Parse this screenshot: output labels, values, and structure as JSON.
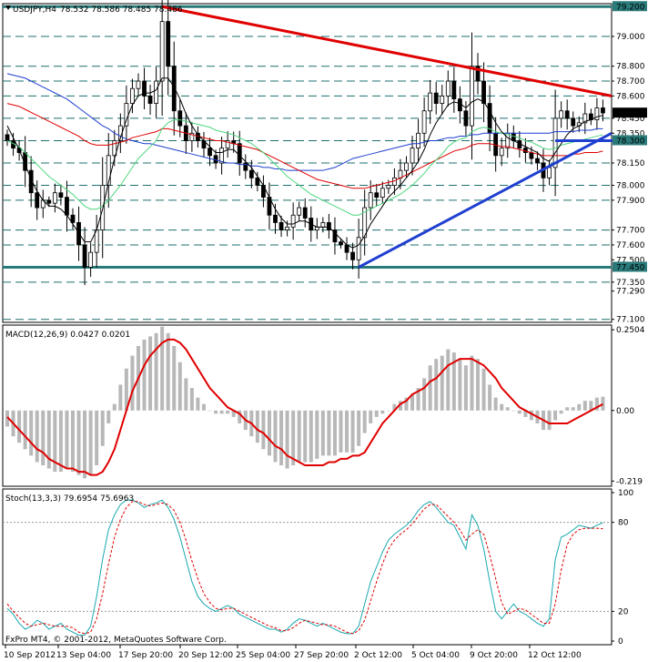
{
  "header": {
    "symbol_text": "USDJPY,H4",
    "ohlc_text": "78.532 78.586 78.485 78.486"
  },
  "footer_text": "FxPro MT4, © 2001-2012, MetaQuotes Software Corp.",
  "colors": {
    "background": "#ffffff",
    "grid_dash": "#1f6f6f",
    "support_resistance": "#2a7a7a",
    "trendline_red": "#e00000",
    "trendline_blue": "#1f3fd0",
    "candle": "#000000",
    "macd_hist": "#b8b8b8",
    "macd_signal": "#e00000",
    "stoch_main": "#18a8b0",
    "stoch_signal": "#e00000",
    "ma_blue": "#1f3fd0",
    "ma_red": "#e00000",
    "ma_green": "#4fd67f"
  },
  "chart_data": [
    {
      "type": "candlestick",
      "name": "main",
      "x_tick_labels": [
        "10 Sep 2012",
        "13 Sep 04:00",
        "17 Sep 20:00",
        "20 Sep 12:00",
        "25 Sep 04:00",
        "27 Sep 20:00",
        "2 Oct 12:00",
        "5 Oct 04:00",
        "9 Oct 20:00",
        "12 Oct 12:00"
      ],
      "y_tick_labels": [
        "79.200",
        "79.000",
        "78.800",
        "78.700",
        "78.600",
        "78.485",
        "78.450",
        "78.350",
        "78.300",
        "78.150",
        "78.000",
        "77.900",
        "77.700",
        "77.600",
        "77.500",
        "77.450",
        "77.350",
        "77.290",
        "77.100"
      ],
      "ylim": [
        77.08,
        79.22
      ],
      "levels": [
        79.2,
        79.0,
        78.8,
        78.7,
        78.6,
        78.45,
        78.3,
        78.15,
        78.0,
        77.9,
        77.7,
        77.6,
        77.45,
        77.35,
        77.1
      ],
      "major_levels": [
        79.2,
        77.45
      ],
      "last_price": 78.486,
      "closes": [
        78.3,
        78.25,
        78.22,
        78.1,
        77.95,
        77.85,
        77.9,
        77.88,
        77.95,
        77.92,
        77.8,
        77.75,
        77.6,
        77.45,
        77.55,
        77.7,
        78.0,
        78.2,
        78.3,
        78.4,
        78.55,
        78.65,
        78.7,
        78.6,
        78.55,
        78.7,
        79.1,
        78.8,
        78.5,
        78.4,
        78.3,
        78.35,
        78.3,
        78.25,
        78.2,
        78.15,
        78.25,
        78.3,
        78.28,
        78.15,
        78.1,
        78.05,
        78.0,
        77.92,
        77.8,
        77.75,
        77.7,
        77.72,
        77.8,
        77.85,
        77.78,
        77.7,
        77.72,
        77.75,
        77.7,
        77.62,
        77.6,
        77.55,
        77.5,
        77.65,
        77.85,
        77.95,
        77.92,
        77.98,
        78.0,
        78.05,
        78.1,
        78.15,
        78.25,
        78.35,
        78.5,
        78.62,
        78.55,
        78.6,
        78.7,
        78.58,
        78.5,
        78.4,
        78.8,
        78.7,
        78.55,
        78.35,
        78.2,
        78.25,
        78.35,
        78.3,
        78.25,
        78.22,
        78.18,
        78.15,
        78.05,
        78.12,
        78.45,
        78.5,
        78.45,
        78.4,
        78.42,
        78.48,
        78.44,
        78.52,
        78.486
      ],
      "annotations": {
        "red_trendline": {
          "from_index": 26,
          "from_price": 79.2,
          "to_price_at_right_edge": 78.6
        },
        "blue_trendline": {
          "from_index": 59,
          "from_price": 77.45,
          "to_price_at_right_edge": 78.35
        },
        "blue_horizontal": {
          "from_index": 92,
          "to_index": 100,
          "price": 78.3
        }
      },
      "moving_averages": [
        {
          "color": "blue",
          "values": [
            78.75,
            78.74,
            78.73,
            78.72,
            78.7,
            78.68,
            78.66,
            78.64,
            78.62,
            78.6,
            78.58,
            78.55,
            78.52,
            78.49,
            78.46,
            78.43,
            78.4,
            78.38,
            78.35,
            78.33,
            78.31,
            78.3,
            78.29,
            78.28,
            78.28,
            78.27,
            78.26,
            78.25,
            78.24,
            78.23,
            78.22,
            78.21,
            78.2,
            78.19,
            78.18,
            78.17,
            78.16,
            78.15,
            78.15,
            78.14,
            78.14,
            78.13,
            78.13,
            78.12,
            78.12,
            78.11,
            78.11,
            78.1,
            78.1,
            78.1,
            78.1,
            78.1,
            78.1,
            78.1,
            78.11,
            78.12,
            78.14,
            78.16,
            78.18,
            78.19,
            78.2,
            78.21,
            78.22,
            78.23,
            78.24,
            78.25,
            78.26,
            78.27,
            78.28,
            78.28,
            78.29,
            78.3,
            78.3,
            78.31,
            78.32,
            78.32,
            78.33,
            78.33,
            78.34,
            78.34,
            78.35,
            78.35,
            78.35,
            78.35,
            78.35,
            78.35,
            78.35,
            78.35,
            78.35,
            78.35,
            78.35,
            78.35,
            78.36,
            78.36,
            78.36,
            78.36,
            78.37,
            78.37,
            78.37,
            78.38,
            78.38
          ]
        },
        {
          "color": "red",
          "values": [
            78.55,
            78.54,
            78.53,
            78.51,
            78.49,
            78.47,
            78.45,
            78.43,
            78.41,
            78.39,
            78.37,
            78.35,
            78.33,
            78.3,
            78.28,
            78.27,
            78.27,
            78.27,
            78.28,
            78.29,
            78.3,
            78.32,
            78.33,
            78.34,
            78.35,
            78.36,
            78.38,
            78.38,
            78.37,
            78.36,
            78.35,
            78.34,
            78.33,
            78.32,
            78.31,
            78.3,
            78.3,
            78.29,
            78.28,
            78.27,
            78.26,
            78.25,
            78.24,
            78.22,
            78.2,
            78.18,
            78.16,
            78.14,
            78.12,
            78.1,
            78.08,
            78.06,
            78.04,
            78.03,
            78.02,
            78.01,
            78.0,
            77.99,
            77.98,
            77.98,
            77.98,
            77.99,
            78.0,
            78.01,
            78.02,
            78.03,
            78.05,
            78.07,
            78.09,
            78.11,
            78.13,
            78.15,
            78.17,
            78.19,
            78.21,
            78.23,
            78.24,
            78.25,
            78.27,
            78.28,
            78.28,
            78.28,
            78.27,
            78.26,
            78.26,
            78.25,
            78.24,
            78.23,
            78.22,
            78.21,
            78.2,
            78.2,
            78.2,
            78.2,
            78.2,
            78.21,
            78.21,
            78.22,
            78.22,
            78.22,
            78.23
          ]
        },
        {
          "color": "green",
          "values": [
            78.3,
            78.28,
            78.26,
            78.22,
            78.18,
            78.14,
            78.1,
            78.06,
            78.03,
            78.0,
            77.97,
            77.94,
            77.9,
            77.86,
            77.84,
            77.84,
            77.86,
            77.9,
            77.95,
            78.0,
            78.06,
            78.12,
            78.18,
            78.22,
            78.26,
            78.3,
            78.38,
            78.42,
            78.44,
            78.44,
            78.43,
            78.42,
            78.41,
            78.4,
            78.39,
            78.37,
            78.36,
            78.35,
            78.34,
            78.32,
            78.3,
            78.28,
            78.25,
            78.22,
            78.18,
            78.14,
            78.1,
            78.06,
            78.03,
            78.0,
            77.97,
            77.94,
            77.92,
            77.9,
            77.88,
            77.86,
            77.84,
            77.82,
            77.8,
            77.8,
            77.82,
            77.84,
            77.86,
            77.88,
            77.9,
            77.92,
            77.94,
            77.97,
            78.0,
            78.04,
            78.08,
            78.13,
            78.17,
            78.21,
            78.26,
            78.29,
            78.31,
            78.32,
            78.36,
            78.38,
            78.39,
            78.38,
            78.36,
            78.35,
            78.34,
            78.33,
            78.32,
            78.3,
            78.29,
            78.27,
            78.25,
            78.24,
            78.25,
            78.27,
            78.28,
            78.29,
            78.3,
            78.31,
            78.32,
            78.33,
            78.34
          ]
        },
        {
          "color": "black",
          "values": [
            78.4,
            78.32,
            78.24,
            78.14,
            78.04,
            77.96,
            77.9,
            77.86,
            77.86,
            77.84,
            77.8,
            77.74,
            77.68,
            77.62,
            77.62,
            77.7,
            77.84,
            78.02,
            78.18,
            78.32,
            78.44,
            78.54,
            78.6,
            78.62,
            78.62,
            78.64,
            78.72,
            78.72,
            78.66,
            78.58,
            78.48,
            78.4,
            78.34,
            78.3,
            78.26,
            78.22,
            78.22,
            78.24,
            78.24,
            78.2,
            78.16,
            78.12,
            78.06,
            78.0,
            77.92,
            77.84,
            77.78,
            77.74,
            77.74,
            77.76,
            77.76,
            77.74,
            77.72,
            77.72,
            77.72,
            77.68,
            77.64,
            77.6,
            77.58,
            77.6,
            77.66,
            77.74,
            77.8,
            77.86,
            77.92,
            77.96,
            78.0,
            78.05,
            78.1,
            78.16,
            78.24,
            78.34,
            78.42,
            78.48,
            78.54,
            78.56,
            78.55,
            78.52,
            78.56,
            78.58,
            78.56,
            78.5,
            78.42,
            78.36,
            78.32,
            78.3,
            78.28,
            78.26,
            78.24,
            78.22,
            78.18,
            78.16,
            78.22,
            78.28,
            78.34,
            78.38,
            78.4,
            78.43,
            78.44,
            78.46,
            78.47
          ]
        }
      ]
    },
    {
      "type": "bar",
      "name": "macd",
      "title": "MACD(12,26,9) 0.0427 0.0201",
      "y_tick_labels": [
        "0.2504",
        "0.00",
        "-0.219"
      ],
      "ylim": [
        -0.235,
        0.265
      ],
      "histogram": [
        -0.05,
        -0.08,
        -0.1,
        -0.12,
        -0.14,
        -0.16,
        -0.17,
        -0.18,
        -0.19,
        -0.19,
        -0.18,
        -0.19,
        -0.2,
        -0.21,
        -0.2,
        -0.17,
        -0.11,
        -0.04,
        0.02,
        0.08,
        0.13,
        0.17,
        0.2,
        0.22,
        0.23,
        0.24,
        0.26,
        0.24,
        0.2,
        0.15,
        0.1,
        0.07,
        0.04,
        0.02,
        0.0,
        -0.01,
        -0.01,
        -0.01,
        -0.02,
        -0.04,
        -0.06,
        -0.08,
        -0.1,
        -0.12,
        -0.14,
        -0.16,
        -0.17,
        -0.18,
        -0.17,
        -0.16,
        -0.16,
        -0.16,
        -0.15,
        -0.14,
        -0.14,
        -0.14,
        -0.13,
        -0.13,
        -0.13,
        -0.11,
        -0.07,
        -0.04,
        -0.02,
        -0.01,
        0.0,
        0.02,
        0.03,
        0.04,
        0.05,
        0.07,
        0.1,
        0.14,
        0.16,
        0.17,
        0.19,
        0.18,
        0.16,
        0.14,
        0.17,
        0.16,
        0.13,
        0.08,
        0.04,
        0.02,
        0.01,
        0.0,
        -0.01,
        -0.02,
        -0.03,
        -0.04,
        -0.06,
        -0.06,
        -0.03,
        -0.01,
        0.01,
        0.01,
        0.02,
        0.03,
        0.03,
        0.04,
        0.0427
      ],
      "signal": [
        -0.02,
        -0.04,
        -0.06,
        -0.08,
        -0.1,
        -0.12,
        -0.13,
        -0.15,
        -0.16,
        -0.17,
        -0.18,
        -0.18,
        -0.19,
        -0.19,
        -0.2,
        -0.2,
        -0.19,
        -0.16,
        -0.12,
        -0.06,
        0.0,
        0.06,
        0.1,
        0.14,
        0.17,
        0.19,
        0.21,
        0.22,
        0.22,
        0.21,
        0.19,
        0.16,
        0.13,
        0.1,
        0.07,
        0.05,
        0.03,
        0.01,
        0.0,
        -0.01,
        -0.03,
        -0.04,
        -0.06,
        -0.07,
        -0.09,
        -0.11,
        -0.12,
        -0.14,
        -0.15,
        -0.16,
        -0.17,
        -0.17,
        -0.17,
        -0.17,
        -0.16,
        -0.16,
        -0.15,
        -0.15,
        -0.14,
        -0.14,
        -0.13,
        -0.1,
        -0.07,
        -0.04,
        -0.02,
        0.0,
        0.02,
        0.03,
        0.05,
        0.06,
        0.07,
        0.09,
        0.1,
        0.12,
        0.14,
        0.15,
        0.16,
        0.16,
        0.16,
        0.15,
        0.14,
        0.12,
        0.1,
        0.07,
        0.05,
        0.03,
        0.01,
        0.0,
        -0.01,
        -0.02,
        -0.03,
        -0.04,
        -0.04,
        -0.04,
        -0.04,
        -0.03,
        -0.02,
        -0.01,
        0.0,
        0.01,
        0.0201
      ]
    },
    {
      "type": "line",
      "name": "stochastic",
      "title": "Stoch(13,3,3) 79.6954 75.6963",
      "y_tick_labels": [
        "100",
        "80",
        "20",
        "0"
      ],
      "ylim": [
        0,
        100
      ],
      "series": [
        {
          "values": [
            22,
            18,
            12,
            8,
            10,
            14,
            12,
            8,
            10,
            12,
            8,
            6,
            4,
            4,
            10,
            30,
            55,
            75,
            85,
            92,
            95,
            95,
            93,
            90,
            92,
            93,
            95,
            90,
            82,
            70,
            55,
            40,
            30,
            25,
            22,
            20,
            22,
            24,
            22,
            18,
            16,
            14,
            12,
            10,
            8,
            8,
            6,
            8,
            12,
            15,
            14,
            12,
            10,
            12,
            10,
            8,
            6,
            5,
            5,
            10,
            25,
            40,
            50,
            60,
            68,
            72,
            75,
            78,
            82,
            88,
            92,
            94,
            90,
            85,
            80,
            78,
            70,
            62,
            85,
            78,
            62,
            40,
            20,
            15,
            20,
            25,
            20,
            18,
            15,
            12,
            10,
            15,
            55,
            70,
            72,
            75,
            78,
            77,
            76,
            78,
            79.6954
          ]
        },
        {
          "values": [
            25,
            20,
            16,
            12,
            10,
            11,
            12,
            11,
            10,
            10,
            10,
            9,
            6,
            5,
            6,
            15,
            32,
            52,
            70,
            82,
            90,
            94,
            94,
            92,
            91,
            92,
            93,
            92,
            88,
            80,
            68,
            54,
            42,
            32,
            26,
            22,
            21,
            22,
            22,
            20,
            18,
            16,
            14,
            12,
            10,
            9,
            7,
            7,
            9,
            12,
            14,
            13,
            12,
            11,
            11,
            10,
            8,
            6,
            5,
            7,
            14,
            27,
            40,
            52,
            62,
            68,
            72,
            75,
            79,
            84,
            89,
            92,
            92,
            88,
            84,
            80,
            75,
            68,
            72,
            75,
            72,
            58,
            42,
            26,
            18,
            20,
            22,
            21,
            18,
            15,
            12,
            12,
            25,
            48,
            65,
            72,
            75,
            76,
            76,
            76,
            75.6963
          ]
        }
      ]
    }
  ]
}
